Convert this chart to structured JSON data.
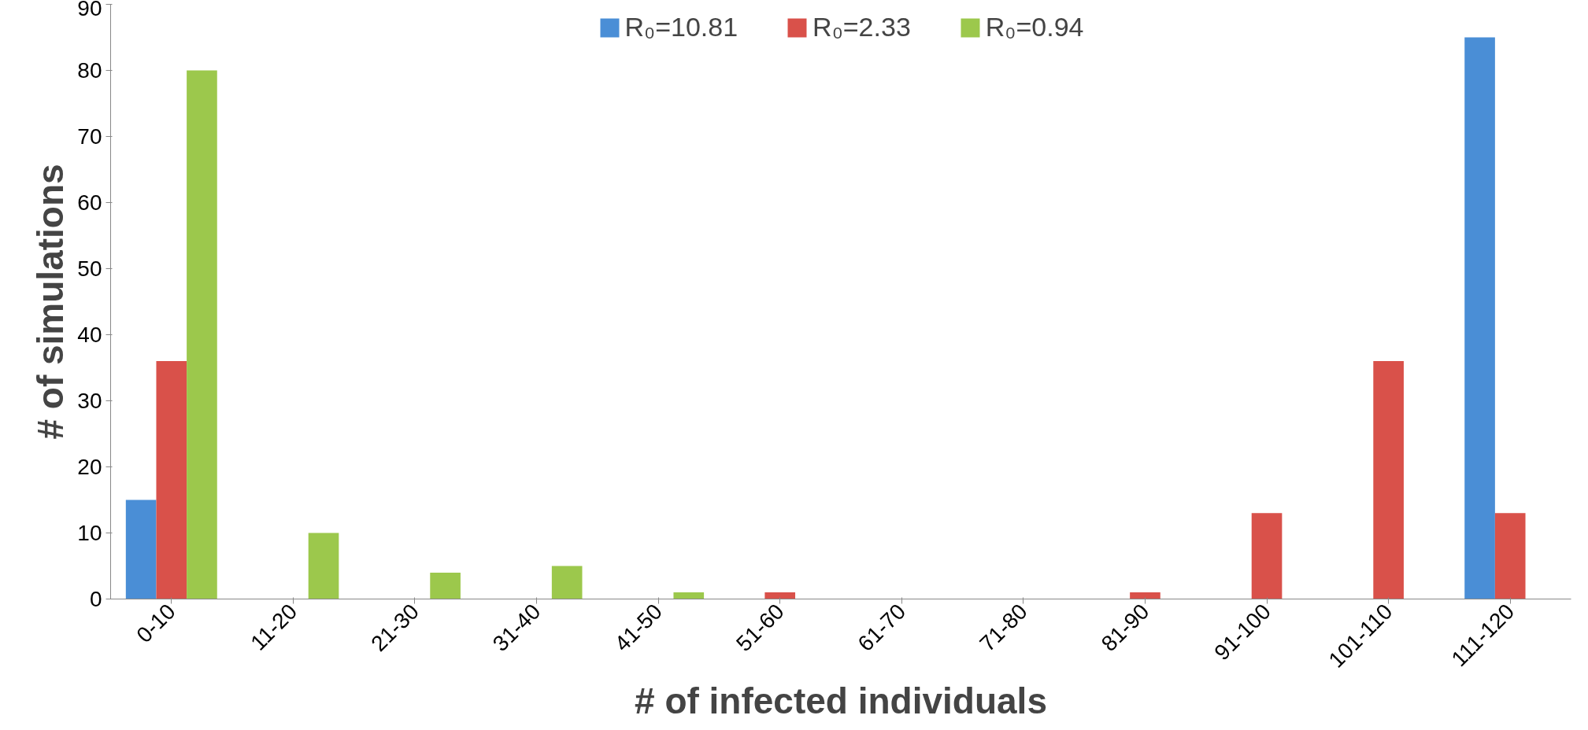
{
  "chart_data": {
    "type": "bar",
    "xlabel": "# of infected individuals",
    "ylabel": "# of simulations",
    "categories": [
      "0-10",
      "11-20",
      "21-30",
      "31-40",
      "41-50",
      "51-60",
      "61-70",
      "71-80",
      "81-90",
      "91-100",
      "101-110",
      "111-120"
    ],
    "series": [
      {
        "name": "R₀=10.81",
        "color": "#4a8ed6",
        "values": [
          15,
          0,
          0,
          0,
          0,
          0,
          0,
          0,
          0,
          0,
          0,
          85
        ]
      },
      {
        "name": "R₀=2.33",
        "color": "#d9514a",
        "values": [
          36,
          0,
          0,
          0,
          0,
          1,
          0,
          0,
          1,
          13,
          36,
          13
        ]
      },
      {
        "name": "R₀=0.94",
        "color": "#9cc84c",
        "values": [
          80,
          10,
          4,
          5,
          1,
          0,
          0,
          0,
          0,
          0,
          0,
          0
        ]
      }
    ],
    "ylim": [
      0,
      90
    ],
    "yticks": [
      0,
      10,
      20,
      30,
      40,
      50,
      60,
      70,
      80,
      90
    ],
    "grid": false,
    "legend": "top"
  }
}
